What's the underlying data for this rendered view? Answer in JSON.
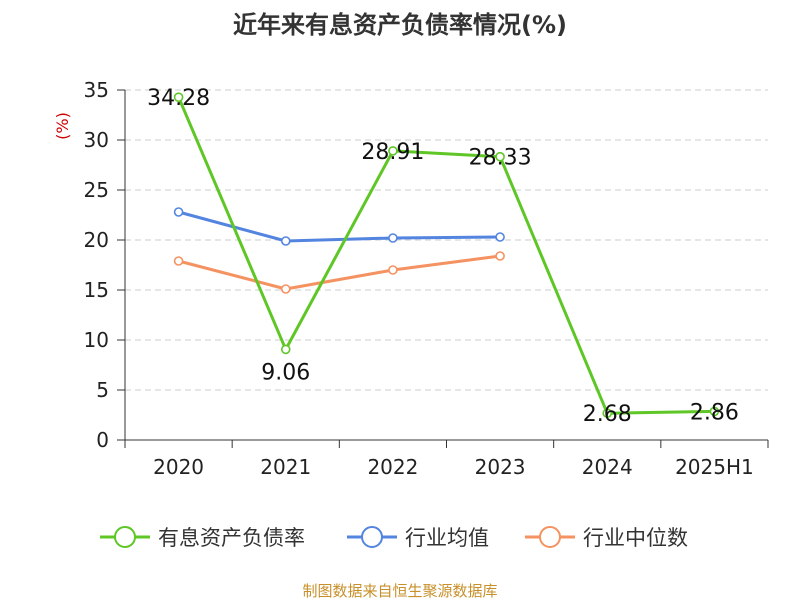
{
  "colors": {
    "debt_ratio": "#5ec726",
    "industry_avg": "#5385e0",
    "industry_median": "#f59261",
    "grid": "#cccccc",
    "axis": "#333333",
    "source": "#c8902a"
  },
  "chart_data": {
    "type": "line",
    "title": "近年来有息资产负债率情况(%)",
    "ylabel": "(%)",
    "xlabel": "",
    "categories": [
      "2020",
      "2021",
      "2022",
      "2023",
      "2024",
      "2025H1"
    ],
    "ylim": [
      0,
      35
    ],
    "yticks": [
      0,
      5,
      10,
      15,
      20,
      25,
      30,
      35
    ],
    "grid": true,
    "legend_position": "bottom",
    "series": [
      {
        "name": "有息资产负债率",
        "values": [
          34.28,
          9.06,
          28.91,
          28.33,
          2.68,
          2.86
        ],
        "labels": [
          "34.28",
          "9.06",
          "28.91",
          "28.33",
          "2.68",
          "2.86"
        ]
      },
      {
        "name": "行业均值",
        "values": [
          22.8,
          19.9,
          20.2,
          20.3,
          null,
          null
        ]
      },
      {
        "name": "行业中位数",
        "values": [
          17.9,
          15.1,
          17.0,
          18.4,
          null,
          null
        ]
      }
    ]
  },
  "source": "制图数据来自恒生聚源数据库"
}
